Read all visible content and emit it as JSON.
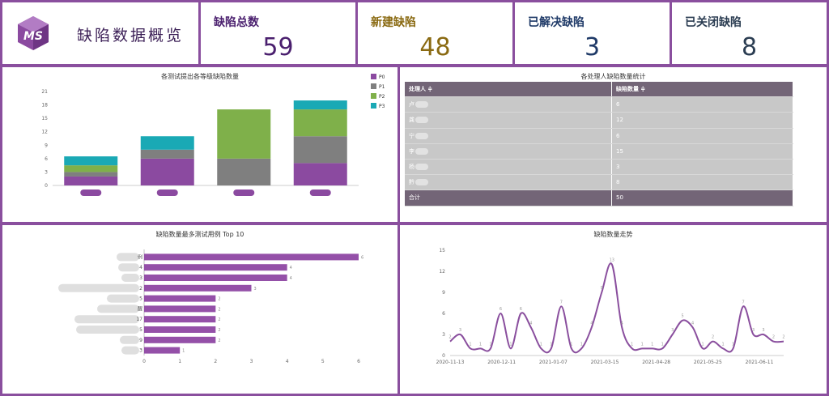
{
  "brand": {
    "logo_text": "MS",
    "title": "缺陷数据概览"
  },
  "stats": [
    {
      "label": "缺陷总数",
      "value": "59",
      "color": "#4a1f6e"
    },
    {
      "label": "新建缺陷",
      "value": "48",
      "color": "#8a6a12"
    },
    {
      "label": "已解决缺陷",
      "value": "3",
      "color": "#1f3a68"
    },
    {
      "label": "已关闭缺陷",
      "value": "8",
      "color": "#2b3d52"
    }
  ],
  "colors": {
    "border": "#8a4f9e",
    "P0": "#8b4aa0",
    "P1": "#7f7f7f",
    "P2": "#7fb04a",
    "P3": "#1aa9b5",
    "bar": "#9450a8",
    "line": "#8a4f9e"
  },
  "stack_chart": {
    "title": "各测试提出各等级缺陷数量",
    "chart_data": {
      "type": "bar",
      "stacked": true,
      "categories": [
        "",
        "",
        "",
        ""
      ],
      "legend_position": "top-right",
      "ylim": [
        0,
        21
      ],
      "yticks": [
        "0",
        "3",
        "6",
        "9",
        "12",
        "15",
        "18",
        "21"
      ],
      "series": [
        {
          "name": "P0",
          "values": [
            2,
            6,
            0,
            5
          ]
        },
        {
          "name": "P1",
          "values": [
            1,
            2,
            6,
            6
          ]
        },
        {
          "name": "P2",
          "values": [
            1.5,
            0,
            11,
            6
          ]
        },
        {
          "name": "P3",
          "values": [
            2,
            3,
            0,
            2
          ]
        }
      ]
    }
  },
  "table": {
    "title": "各处理人缺陷数量统计",
    "headers": [
      "处理人 ≑",
      "缺陷数量 ≑"
    ],
    "rows": [
      {
        "name": "卢",
        "count": "6"
      },
      {
        "name": "龚",
        "count": "12"
      },
      {
        "name": "宁",
        "count": "6"
      },
      {
        "name": "李",
        "count": "15"
      },
      {
        "name": "杨",
        "count": "3"
      },
      {
        "name": "黔",
        "count": "8"
      }
    ],
    "total": {
      "name": "合计",
      "count": "50"
    }
  },
  "hbar_chart": {
    "title": "缺陷数量最多测试用例 Top 10",
    "chart_data": {
      "type": "bar",
      "orientation": "horizontal",
      "categories": [
        "例",
        "4",
        "3",
        "2",
        "5",
        "醒",
        "17",
        "5",
        "9",
        "3"
      ],
      "values": [
        6,
        4,
        4,
        3,
        2,
        2,
        2,
        2,
        2,
        1
      ],
      "value_labels": [
        "6",
        "4",
        "4",
        "3",
        "2",
        "2",
        "2",
        "2",
        "2",
        "1"
      ],
      "xlim": [
        0,
        6
      ],
      "xticks": [
        "0",
        "1",
        "2",
        "3",
        "4",
        "5",
        "6"
      ]
    }
  },
  "trend_chart": {
    "title": "缺陷数量走势",
    "chart_data": {
      "type": "line",
      "ylim": [
        0,
        15
      ],
      "yticks": [
        "0",
        "3",
        "6",
        "9",
        "12",
        "15"
      ],
      "xticks": [
        "2020-11-13",
        "2020-12-11",
        "2021-01-07",
        "2021-03-15",
        "2021-04-28",
        "2021-05-25",
        "2021-06-11"
      ],
      "values": [
        2,
        3,
        1,
        1,
        1,
        6,
        1,
        6,
        4,
        1,
        1,
        7,
        1,
        1,
        4,
        9,
        13,
        4,
        1,
        1,
        1,
        1,
        3,
        5,
        4,
        1,
        2,
        1,
        1,
        7,
        3,
        3,
        2,
        2
      ],
      "point_labels": [
        "2",
        "3",
        "1",
        "1",
        "1",
        "6",
        "1",
        "6",
        "4",
        "1",
        "1",
        "7",
        "1",
        "1",
        "4",
        "9",
        "13",
        "4",
        "1",
        "1",
        "1",
        "1",
        "3",
        "5",
        "4",
        "1",
        "2",
        "1",
        "1",
        "7",
        "3",
        "3",
        "2",
        "2"
      ]
    }
  }
}
